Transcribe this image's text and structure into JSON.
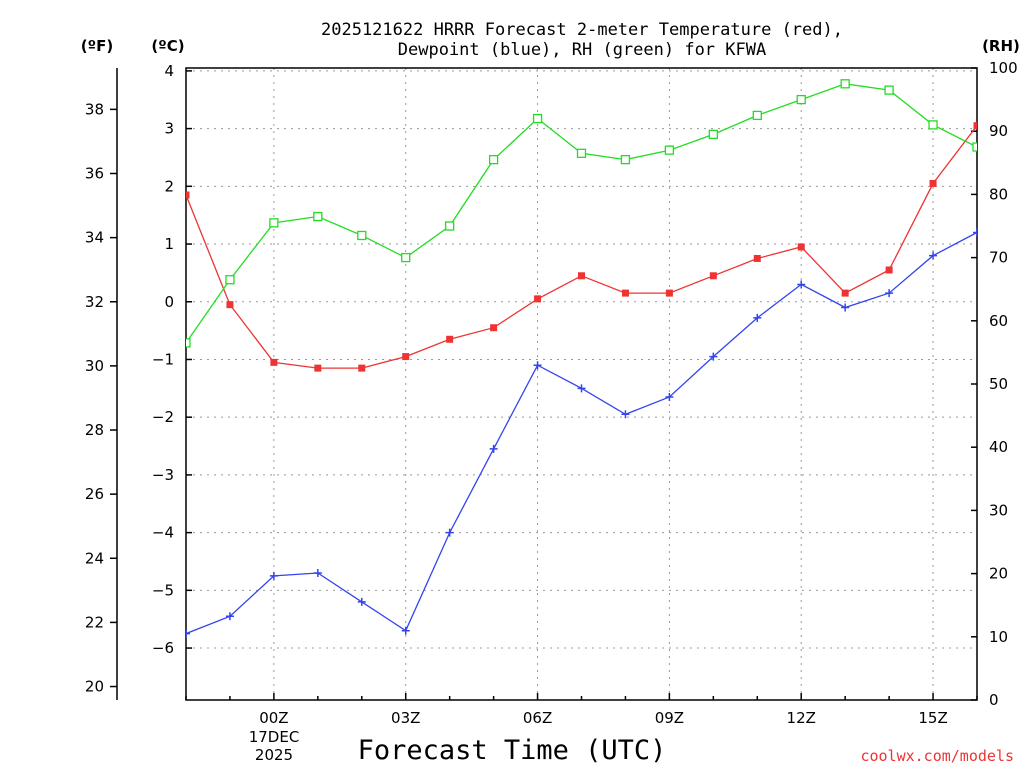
{
  "chart_data": {
    "type": "line",
    "title_line1": "2025121622 HRRR Forecast 2-meter Temperature (red),",
    "title_line2": "Dewpoint (blue), RH (green) for KFWA",
    "xlabel": "Forecast Time (UTC)",
    "watermark": "coolwx.com/models",
    "units": {
      "fahrenheit": "(ºF)",
      "celsius": "(ºC)",
      "rh": "(RH)"
    },
    "date_label": {
      "day": "17DEC",
      "year": "2025"
    },
    "x_tick_labels": [
      "00Z",
      "03Z",
      "06Z",
      "09Z",
      "12Z",
      "15Z"
    ],
    "x_tick_hours": [
      2,
      5,
      8,
      11,
      14,
      17
    ],
    "x_hours": [
      0,
      1,
      2,
      3,
      4,
      5,
      6,
      7,
      8,
      9,
      10,
      11,
      12,
      13,
      14,
      15,
      16,
      17,
      18
    ],
    "xlim": [
      0,
      18
    ],
    "celsius_axis": {
      "ylim": [
        -6.9,
        4.05
      ],
      "ticks": [
        4,
        3,
        2,
        1,
        0,
        -1,
        -2,
        -3,
        -4,
        -5,
        -6
      ],
      "tick_labels": [
        "4",
        "3",
        "2",
        "1",
        "0",
        "−1",
        "−2",
        "−3",
        "−4",
        "−5",
        "−6"
      ]
    },
    "fahrenheit_axis": {
      "ticks": [
        38,
        36,
        34,
        32,
        30,
        28,
        26,
        24,
        22,
        20
      ],
      "tick_labels": [
        "38",
        "36",
        "34",
        "32",
        "30",
        "28",
        "26",
        "24",
        "22",
        "20"
      ]
    },
    "rh_axis": {
      "ylim": [
        0,
        100
      ],
      "ticks": [
        100,
        90,
        80,
        70,
        60,
        50,
        40,
        30,
        20,
        10,
        0
      ],
      "tick_labels": [
        "100",
        "90",
        "80",
        "70",
        "60",
        "50",
        "40",
        "30",
        "20",
        "10",
        "0"
      ]
    },
    "series": [
      {
        "name": "Temperature",
        "axis": "celsius",
        "color": "#ee3333",
        "marker": "filled-square",
        "values": [
          1.85,
          -0.05,
          -1.05,
          -1.15,
          -1.15,
          -0.95,
          -0.65,
          -0.45,
          0.05,
          0.45,
          0.15,
          0.15,
          0.45,
          0.75,
          0.95,
          0.15,
          0.55,
          2.05,
          3.05
        ]
      },
      {
        "name": "Dewpoint",
        "axis": "celsius",
        "color": "#3344ee",
        "marker": "plus",
        "values": [
          -5.75,
          -5.45,
          -4.75,
          -4.7,
          -5.2,
          -5.7,
          -4.0,
          -2.55,
          -1.1,
          -1.5,
          -1.95,
          -1.65,
          -0.95,
          -0.28,
          0.3,
          -0.1,
          0.15,
          0.8,
          1.2
        ]
      },
      {
        "name": "RH",
        "axis": "rh",
        "color": "#22dd22",
        "marker": "open-square",
        "values": [
          56.5,
          66.5,
          75.5,
          76.5,
          73.5,
          70,
          75,
          85.5,
          92,
          86.5,
          85.5,
          87,
          89.5,
          92.5,
          95,
          97.5,
          96.5,
          91,
          87.5
        ]
      }
    ]
  }
}
